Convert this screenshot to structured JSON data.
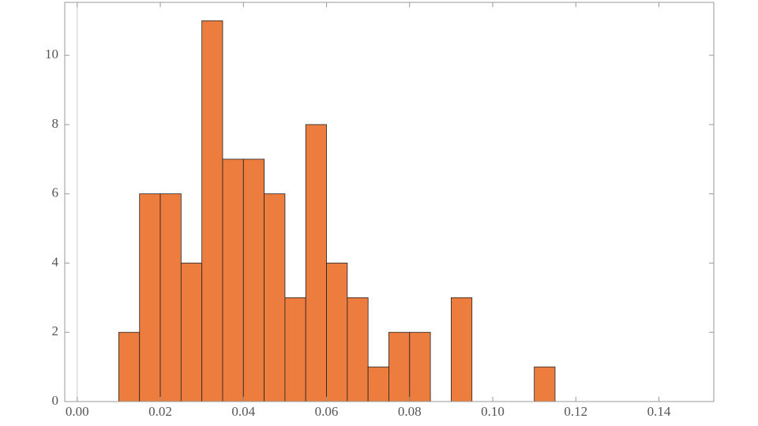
{
  "chart_data": {
    "type": "histogram",
    "bins": [
      0.01,
      0.015,
      0.02,
      0.025,
      0.03,
      0.035,
      0.04,
      0.045,
      0.05,
      0.055,
      0.06,
      0.065,
      0.07,
      0.075,
      0.08,
      0.085,
      0.09,
      0.095,
      0.1,
      0.105,
      0.11,
      0.115
    ],
    "values": [
      2,
      6,
      6,
      4,
      11,
      7,
      7,
      6,
      3,
      8,
      4,
      3,
      1,
      2,
      2,
      0,
      3,
      0,
      0,
      0,
      1
    ],
    "color": "#ec7d3e",
    "xlim": [
      -0.003,
      0.1532
    ],
    "xticks": [
      {
        "value": 0,
        "label": "0.00"
      },
      {
        "value": 0.02,
        "label": "0.02"
      },
      {
        "value": 0.04,
        "label": "0.04"
      },
      {
        "value": 0.06,
        "label": "0.06"
      },
      {
        "value": 0.08,
        "label": "0.08"
      },
      {
        "value": 0.1,
        "label": "0.10"
      },
      {
        "value": 0.12,
        "label": "0.12"
      },
      {
        "value": 0.14,
        "label": "0.14"
      }
    ],
    "ylim": [
      0,
      11.53
    ],
    "yticks": [
      0,
      2,
      4,
      6,
      8,
      10
    ]
  }
}
